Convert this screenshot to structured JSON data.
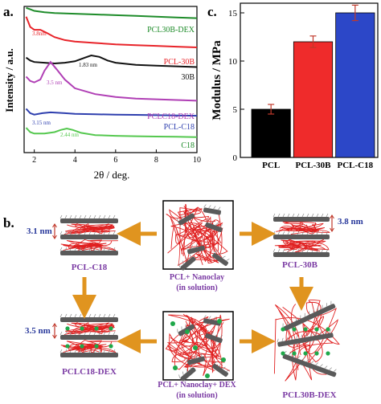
{
  "panels": {
    "a": "a.",
    "b": "b.",
    "c": "c."
  },
  "chart_data": [
    {
      "type": "line",
      "xlabel": "2θ / deg.",
      "ylabel": "Intensity / a.u.",
      "xlim": [
        1.5,
        10
      ],
      "xticks": [
        "2",
        "4",
        "6",
        "8",
        "10"
      ],
      "series": [
        {
          "name": "PCL30B-DEX",
          "color": "#1e8c2a",
          "x": [
            1.6,
            1.8,
            2,
            2.5,
            3,
            4,
            5,
            6,
            7,
            8,
            9,
            10
          ],
          "y": [
            0.99,
            0.98,
            0.97,
            0.96,
            0.955,
            0.95,
            0.945,
            0.94,
            0.935,
            0.93,
            0.925,
            0.92
          ]
        },
        {
          "name": "PCL-30B",
          "color": "#e8242a",
          "x": [
            1.6,
            1.8,
            2,
            2.3,
            2.6,
            3,
            3.5,
            4,
            5,
            6,
            7,
            8,
            9,
            10
          ],
          "y": [
            0.93,
            0.86,
            0.84,
            0.84,
            0.82,
            0.79,
            0.77,
            0.76,
            0.75,
            0.74,
            0.735,
            0.73,
            0.725,
            0.72
          ]
        },
        {
          "name": "30B",
          "color": "#111111",
          "x": [
            1.6,
            1.8,
            2,
            2.5,
            3,
            3.5,
            4,
            4.5,
            4.8,
            5.2,
            5.6,
            6,
            7,
            8,
            9,
            10
          ],
          "y": [
            0.65,
            0.63,
            0.62,
            0.615,
            0.61,
            0.615,
            0.625,
            0.65,
            0.665,
            0.655,
            0.63,
            0.615,
            0.6,
            0.595,
            0.59,
            0.585
          ]
        },
        {
          "name": "PCLC18-DEX",
          "color": "#b03fb5",
          "x": [
            1.6,
            1.8,
            2,
            2.3,
            2.5,
            2.8,
            3.1,
            3.5,
            4,
            5,
            6,
            7,
            8,
            9,
            10
          ],
          "y": [
            0.52,
            0.49,
            0.48,
            0.5,
            0.56,
            0.62,
            0.57,
            0.5,
            0.44,
            0.4,
            0.38,
            0.37,
            0.365,
            0.36,
            0.355
          ]
        },
        {
          "name": "PCL-C18",
          "color": "#2e3fae",
          "x": [
            1.6,
            1.8,
            2,
            2.4,
            2.8,
            3.5,
            4,
            5,
            6,
            7,
            8,
            9,
            10
          ],
          "y": [
            0.3,
            0.27,
            0.26,
            0.27,
            0.275,
            0.27,
            0.265,
            0.262,
            0.26,
            0.258,
            0.256,
            0.254,
            0.252
          ]
        },
        {
          "name": "C18",
          "color": "#55c84f",
          "x": [
            1.6,
            1.8,
            2,
            2.5,
            3,
            3.3,
            3.6,
            3.9,
            4.3,
            5,
            6,
            7,
            8,
            9,
            10
          ],
          "y": [
            0.17,
            0.14,
            0.13,
            0.13,
            0.14,
            0.155,
            0.165,
            0.155,
            0.135,
            0.12,
            0.115,
            0.112,
            0.11,
            0.108,
            0.106
          ]
        }
      ],
      "annotations": [
        {
          "text": "3.8nm",
          "color": "#e8242a"
        },
        {
          "text": "1.83 nm",
          "color": "#111111"
        },
        {
          "text": "3.5 nm",
          "color": "#b03fb5"
        },
        {
          "text": "3.15 nm",
          "color": "#2e3fae"
        },
        {
          "text": "2.44 nm",
          "color": "#55c84f"
        }
      ]
    },
    {
      "type": "bar",
      "ylabel": "Modulus / MPa",
      "ylim": [
        0,
        16
      ],
      "yticks": [
        "0",
        "5",
        "10",
        "15"
      ],
      "categories": [
        "PCL",
        "PCL-30B",
        "PCL-C18"
      ],
      "values": [
        5,
        12,
        15
      ],
      "errors": [
        0.5,
        0.6,
        0.8
      ],
      "colors": [
        "#000000",
        "#ef2b2b",
        "#2c47c8"
      ]
    }
  ],
  "schematic": {
    "labels": {
      "pcl_c18": "PCL-C18",
      "pcl_30b": "PCL-30B",
      "pclc18_dex": "PCLC18-DEX",
      "pcl30b_dex": "PCL30B-DEX",
      "mix1_line1": "PCL+ Nanoclay",
      "mix1_line2": "(in solution)",
      "mix2_line1": "PCL+ Nanoclay+ DEX",
      "mix2_line2": "(in solution)"
    },
    "spacings": {
      "c18": "3.1 nm",
      "b30": "3.8 nm",
      "c18_dex": "3.5 nm"
    },
    "colors": {
      "label": "#7a3aa3",
      "spacing": "#2a3a9c",
      "arrow": "#e0941f",
      "polymer": "#e02020",
      "clay": "#5a5a5a",
      "dex": "#1fa84a"
    }
  }
}
